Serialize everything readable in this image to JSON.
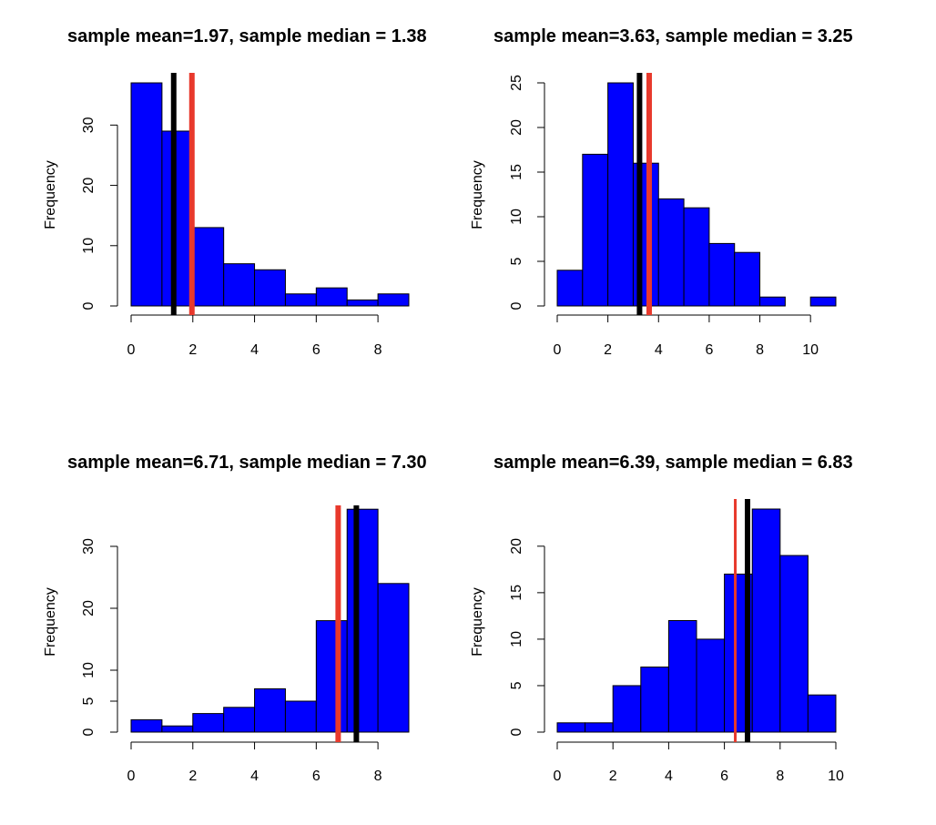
{
  "chart_data": [
    {
      "type": "histogram",
      "title": "sample mean=1.97, sample median = 1.38",
      "ylabel": "Frequency",
      "bin_edges": [
        0,
        1,
        2,
        3,
        4,
        5,
        6,
        7,
        8,
        9
      ],
      "counts": [
        37,
        29,
        13,
        7,
        6,
        2,
        3,
        1,
        2
      ],
      "xticks": [
        0,
        2,
        4,
        6,
        8
      ],
      "yticks": [
        0,
        10,
        20,
        30
      ],
      "xlim": [
        0,
        9
      ],
      "ylim": [
        0,
        37
      ],
      "bar_color": "#0000ff",
      "mean": 1.97,
      "median": 1.38,
      "mean_color": "#e8392c",
      "median_color": "#000000",
      "mean_line_width": 6,
      "median_line_width": 6,
      "mean_on_top": true
    },
    {
      "type": "histogram",
      "title": "sample mean=3.63, sample median = 3.25",
      "ylabel": "Frequency",
      "bin_edges": [
        0,
        1,
        2,
        3,
        4,
        5,
        6,
        7,
        8,
        9,
        10,
        11
      ],
      "counts": [
        4,
        17,
        25,
        16,
        12,
        11,
        7,
        6,
        1,
        0,
        1
      ],
      "xticks": [
        0,
        2,
        4,
        6,
        8,
        10
      ],
      "yticks": [
        0,
        5,
        10,
        15,
        20,
        25
      ],
      "xlim": [
        0,
        11
      ],
      "ylim": [
        0,
        25
      ],
      "bar_color": "#0000ff",
      "mean": 3.63,
      "median": 3.25,
      "mean_color": "#e8392c",
      "median_color": "#000000",
      "mean_line_width": 6,
      "median_line_width": 6,
      "mean_on_top": true
    },
    {
      "type": "histogram",
      "title": "sample mean=6.71, sample median = 7.30",
      "ylabel": "Frequency",
      "bin_edges": [
        0,
        1,
        2,
        3,
        4,
        5,
        6,
        7,
        8,
        9
      ],
      "counts": [
        2,
        1,
        3,
        4,
        7,
        5,
        18,
        36,
        24
      ],
      "xticks": [
        0,
        2,
        4,
        6,
        8
      ],
      "yticks": [
        0,
        5,
        10,
        20,
        30
      ],
      "xlim": [
        0,
        9
      ],
      "ylim": [
        0,
        35
      ],
      "bar_color": "#0000ff",
      "mean": 6.71,
      "median": 7.3,
      "mean_color": "#e8392c",
      "median_color": "#000000",
      "mean_line_width": 6,
      "median_line_width": 6,
      "mean_on_top": false
    },
    {
      "type": "histogram",
      "title": "sample mean=6.39, sample median = 6.83",
      "ylabel": "Frequency",
      "bin_edges": [
        0,
        1,
        2,
        3,
        4,
        5,
        6,
        7,
        8,
        9,
        10
      ],
      "counts": [
        1,
        1,
        5,
        7,
        12,
        10,
        17,
        24,
        19,
        4
      ],
      "xticks": [
        0,
        2,
        4,
        6,
        8,
        10
      ],
      "yticks": [
        0,
        5,
        10,
        15,
        20
      ],
      "xlim": [
        0,
        10
      ],
      "ylim": [
        0,
        24
      ],
      "bar_color": "#0000ff",
      "mean": 6.39,
      "median": 6.83,
      "mean_color": "#e8392c",
      "median_color": "#000000",
      "mean_line_width": 3,
      "median_line_width": 6,
      "mean_on_top": false
    }
  ]
}
